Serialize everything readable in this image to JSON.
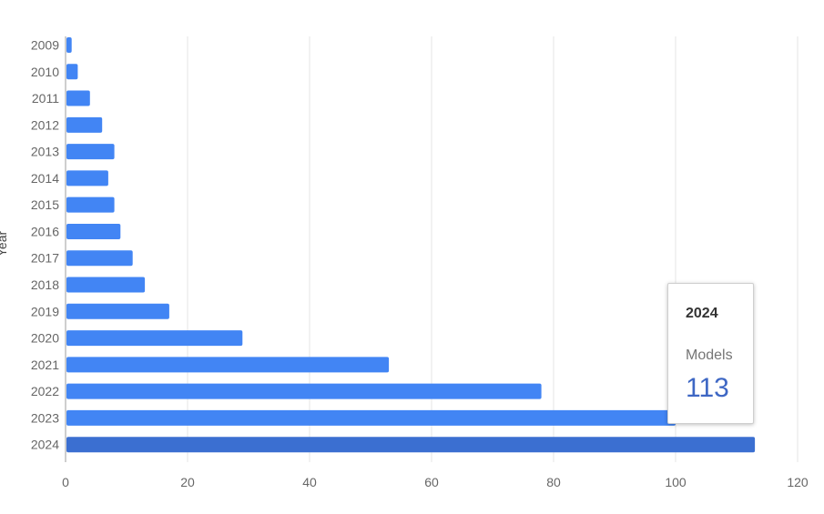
{
  "chart_data": {
    "type": "bar",
    "orientation": "horizontal",
    "ylabel": "Year",
    "xlabel": "",
    "categories": [
      "2009",
      "2010",
      "2011",
      "2012",
      "2013",
      "2014",
      "2015",
      "2016",
      "2017",
      "2018",
      "2019",
      "2020",
      "2021",
      "2022",
      "2023",
      "2024"
    ],
    "series": [
      {
        "values": [
          1,
          2,
          4,
          6,
          8,
          7,
          8,
          9,
          11,
          13,
          17,
          29,
          53,
          78,
          100,
          113
        ]
      }
    ],
    "xlim": [
      0,
      120
    ],
    "xticks": [
      0,
      20,
      40,
      60,
      80,
      100,
      120
    ],
    "grid": true,
    "colors": {
      "bar": "#4285f4",
      "highlight": "#3b6fd1",
      "grid": "#e6e6e6",
      "axis": "#9e9e9e"
    },
    "highlight_index": 15
  },
  "tooltip": {
    "year": "2024",
    "label": "Models",
    "value": "113"
  }
}
